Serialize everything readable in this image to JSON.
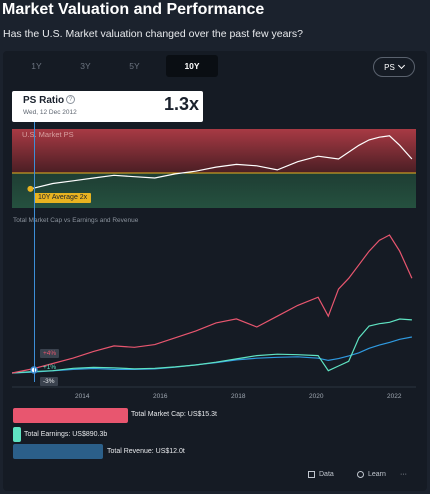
{
  "header": {
    "title": "Market Valuation and Performance",
    "subtitle": "Has the U.S. Market valuation changed over the past few years?"
  },
  "tabs": [
    {
      "label": "1Y",
      "active": false
    },
    {
      "label": "3Y",
      "active": false
    },
    {
      "label": "5Y",
      "active": false
    },
    {
      "label": "10Y",
      "active": true
    }
  ],
  "metric_select": {
    "value": "PS"
  },
  "tooltip": {
    "label": "PS Ratio",
    "help": "?",
    "date": "Wed, 12 Dec 2012",
    "value": "1.3x"
  },
  "ps_band": {
    "label": "U.S. Market PS",
    "average_label": "10Y Average 2x"
  },
  "section_label": "Total Market Cap vs Earnings and Revenue",
  "pct_tags": [
    "+4%",
    "+1%",
    "-3%"
  ],
  "colors": {
    "market_cap": "#e8566f",
    "earnings": "#5fe3c2",
    "revenue": "#2f9ae0",
    "average": "#e8b320"
  },
  "chart_data": [
    {
      "type": "line",
      "title": "U.S. Market PS",
      "x": [
        2012.95,
        2013.5,
        2014.0,
        2014.5,
        2015.0,
        2015.5,
        2016.0,
        2016.5,
        2017.0,
        2017.5,
        2018.0,
        2018.5,
        2019.0,
        2019.5,
        2020.0,
        2020.5,
        2021.0,
        2021.25,
        2021.5,
        2021.75,
        2022.0,
        2022.3
      ],
      "series": [
        {
          "name": "U.S. Market PS",
          "values": [
            1.3,
            1.5,
            1.6,
            1.7,
            1.8,
            1.75,
            1.7,
            1.85,
            1.95,
            2.1,
            2.2,
            2.15,
            2.0,
            2.3,
            2.5,
            2.4,
            2.9,
            3.1,
            3.2,
            3.25,
            2.9,
            2.4
          ]
        }
      ],
      "average": 2,
      "average_label": "10Y Average 2x"
    },
    {
      "type": "line",
      "title": "Total Market Cap vs Earnings and Revenue",
      "x": [
        2012.5,
        2013.0,
        2013.5,
        2014.0,
        2014.5,
        2015.0,
        2015.5,
        2016.0,
        2016.5,
        2017.0,
        2017.5,
        2018.0,
        2018.5,
        2019.0,
        2019.5,
        2020.0,
        2020.25,
        2020.5,
        2020.75,
        2021.0,
        2021.25,
        2021.5,
        2021.75,
        2022.0,
        2022.3
      ],
      "xticks": [
        "2014",
        "2016",
        "2018",
        "2020",
        "2022"
      ],
      "series": [
        {
          "name": "Total Market Cap",
          "values": [
            15.0,
            16.5,
            18.5,
            20.5,
            23.0,
            25.0,
            24.5,
            25.5,
            28.0,
            30.5,
            33.5,
            35.0,
            32.0,
            36.0,
            40.0,
            43.0,
            36.0,
            46.0,
            50.0,
            55.0,
            60.0,
            64.0,
            66.0,
            60.0,
            50.0
          ]
        },
        {
          "name": "Total Earnings",
          "values": [
            0.85,
            0.88,
            0.9,
            0.95,
            0.97,
            0.96,
            0.94,
            0.95,
            0.98,
            1.02,
            1.08,
            1.15,
            1.22,
            1.25,
            1.24,
            1.22,
            0.9,
            1.0,
            1.1,
            1.6,
            1.85,
            1.9,
            1.93,
            2.0,
            1.98
          ]
        },
        {
          "name": "Total Revenue",
          "values": [
            11.0,
            11.2,
            11.5,
            11.8,
            12.0,
            11.8,
            11.8,
            11.9,
            12.3,
            12.8,
            13.3,
            13.9,
            14.3,
            14.5,
            14.6,
            14.3,
            13.8,
            14.2,
            14.8,
            15.5,
            16.5,
            17.2,
            17.8,
            18.5,
            19.0
          ]
        }
      ]
    }
  ],
  "legend": [
    {
      "label": "Total Market Cap: US$15.3t",
      "color": "#e8566f"
    },
    {
      "label": "Total Earnings: US$890.3b",
      "color": "#5fe3c2"
    },
    {
      "label": "Total Revenue: US$12.0t",
      "color": "#2f9ae0"
    }
  ],
  "footer": {
    "data_label": "Data",
    "learn_label": "Learn",
    "more_label": "···"
  }
}
